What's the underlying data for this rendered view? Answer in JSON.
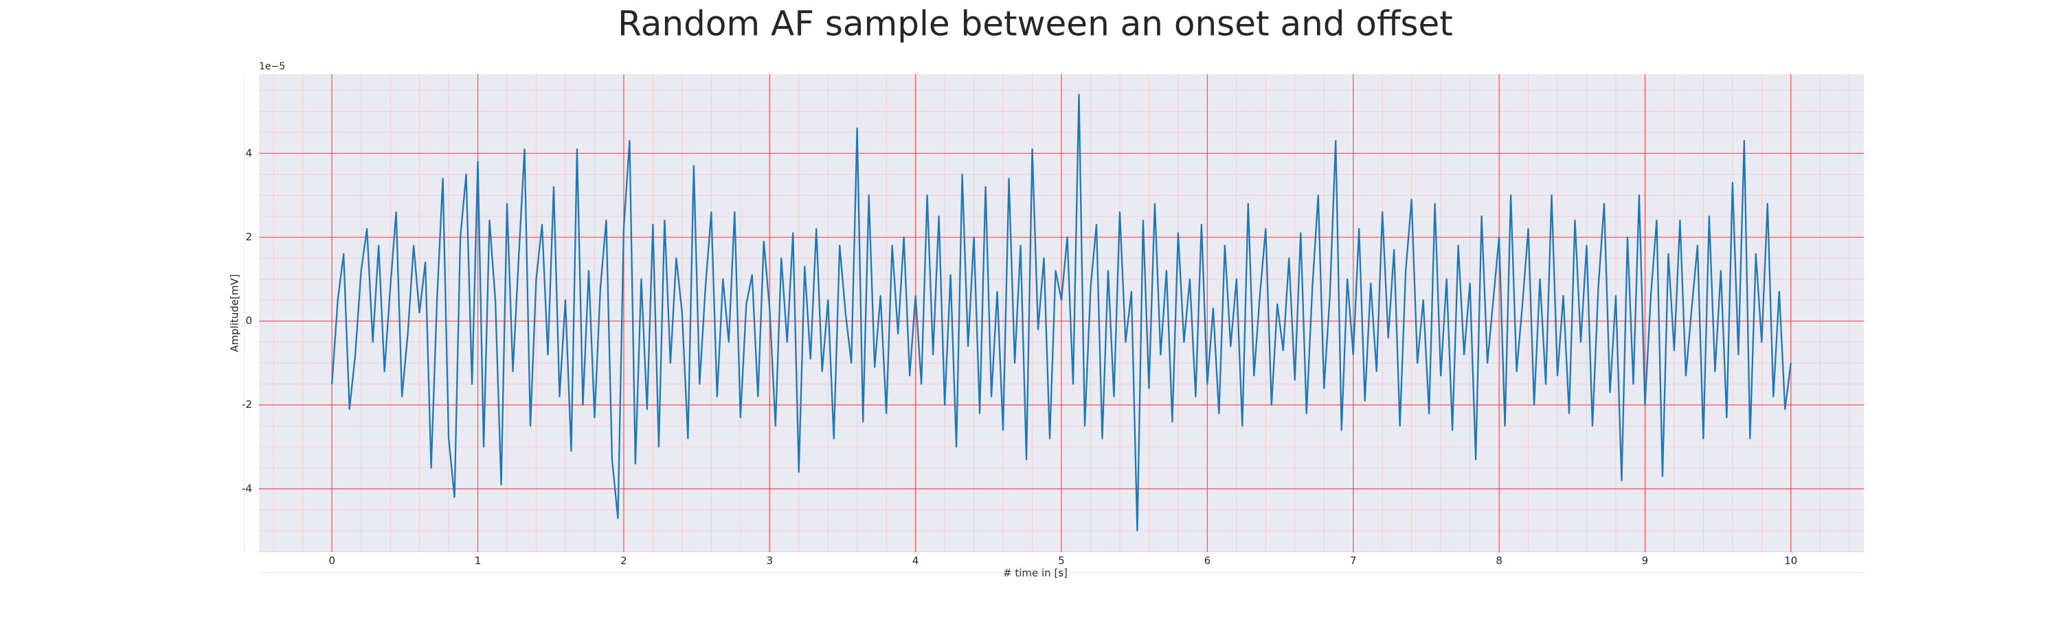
{
  "chart_data": {
    "type": "line",
    "title": "Random AF sample between an onset and offset",
    "xlabel": "# time in [s]",
    "ylabel": "Amplitude[mV]",
    "y_offset_label": "1e−5",
    "color": "#1f77b4",
    "grid": true,
    "xlim": [
      -0.5,
      10.5
    ],
    "ylim": [
      -5.51,
      5.89
    ],
    "xticks": [
      0,
      1,
      2,
      3,
      4,
      5,
      6,
      7,
      8,
      9,
      10
    ],
    "yticks": [
      -4,
      -2,
      0,
      2,
      4
    ],
    "x": [
      0,
      0.04,
      0.08,
      0.12,
      0.16,
      0.2,
      0.24,
      0.28,
      0.32,
      0.36,
      0.4,
      0.44,
      0.48,
      0.52,
      0.56,
      0.6,
      0.64,
      0.68,
      0.72,
      0.76,
      0.8,
      0.84,
      0.88,
      0.92,
      0.96,
      1,
      1.04,
      1.08,
      1.12,
      1.16,
      1.2,
      1.24,
      1.28,
      1.32,
      1.36,
      1.4,
      1.44,
      1.48,
      1.52,
      1.56,
      1.6,
      1.64,
      1.68,
      1.72,
      1.76,
      1.8,
      1.84,
      1.88,
      1.92,
      1.96,
      2,
      2.04,
      2.08,
      2.12,
      2.16,
      2.2,
      2.24,
      2.28,
      2.32,
      2.36,
      2.4,
      2.44,
      2.48,
      2.52,
      2.56,
      2.6,
      2.64,
      2.68,
      2.72,
      2.76,
      2.8,
      2.84,
      2.88,
      2.92,
      2.96,
      3,
      3.04,
      3.08,
      3.12,
      3.16,
      3.2,
      3.24,
      3.28,
      3.32,
      3.36,
      3.4,
      3.44,
      3.48,
      3.52,
      3.56,
      3.6,
      3.64,
      3.68,
      3.72,
      3.76,
      3.8,
      3.84,
      3.88,
      3.92,
      3.96,
      4,
      4.04,
      4.08,
      4.12,
      4.16,
      4.2,
      4.24,
      4.28,
      4.32,
      4.36,
      4.4,
      4.44,
      4.48,
      4.52,
      4.56,
      4.6,
      4.64,
      4.68,
      4.72,
      4.76,
      4.8,
      4.84,
      4.88,
      4.92,
      4.96,
      5,
      5.04,
      5.08,
      5.12,
      5.16,
      5.2,
      5.24,
      5.28,
      5.32,
      5.36,
      5.4,
      5.44,
      5.48,
      5.52,
      5.56,
      5.6,
      5.64,
      5.68,
      5.72,
      5.76,
      5.8,
      5.84,
      5.88,
      5.92,
      5.96,
      6,
      6.04,
      6.08,
      6.12,
      6.16,
      6.2,
      6.24,
      6.28,
      6.32,
      6.36,
      6.4,
      6.44,
      6.48,
      6.52,
      6.56,
      6.6,
      6.64,
      6.68,
      6.72,
      6.76,
      6.8,
      6.84,
      6.88,
      6.92,
      6.96,
      7,
      7.04,
      7.08,
      7.12,
      7.16,
      7.2,
      7.24,
      7.28,
      7.32,
      7.36,
      7.4,
      7.44,
      7.48,
      7.52,
      7.56,
      7.6,
      7.64,
      7.68,
      7.72,
      7.76,
      7.8,
      7.84,
      7.88,
      7.92,
      7.96,
      8,
      8.04,
      8.08,
      8.12,
      8.16,
      8.2,
      8.24,
      8.28,
      8.32,
      8.36,
      8.4,
      8.44,
      8.48,
      8.52,
      8.56,
      8.6,
      8.64,
      8.68,
      8.72,
      8.76,
      8.8,
      8.84,
      8.88,
      8.92,
      8.96,
      9,
      9.04,
      9.08,
      9.12,
      9.16,
      9.2,
      9.24,
      9.28,
      9.32,
      9.36,
      9.4,
      9.44,
      9.48,
      9.52,
      9.56,
      9.6,
      9.64,
      9.68,
      9.72,
      9.76,
      9.8,
      9.84,
      9.88,
      9.92,
      9.96,
      10
    ],
    "values": [
      -1.5,
      0.5,
      1.6,
      -2.1,
      -0.8,
      1.2,
      2.2,
      -0.5,
      1.8,
      -1.2,
      0.8,
      2.6,
      -1.8,
      -0.3,
      1.8,
      0.2,
      1.4,
      -3.5,
      0.5,
      3.4,
      -2.8,
      -4.2,
      2.0,
      3.5,
      -1.5,
      3.8,
      -3.0,
      2.4,
      0.5,
      -3.9,
      2.8,
      -1.2,
      1.5,
      4.1,
      -2.5,
      1.0,
      2.3,
      -0.8,
      3.2,
      -1.8,
      0.5,
      -3.1,
      4.1,
      -2.0,
      1.2,
      -2.3,
      0.8,
      2.4,
      -3.3,
      -4.7,
      2.2,
      4.3,
      -3.4,
      1.0,
      -2.1,
      2.3,
      -3.0,
      2.4,
      -1.0,
      1.5,
      0.2,
      -2.8,
      3.7,
      -1.5,
      0.8,
      2.6,
      -1.8,
      1.0,
      -0.5,
      2.6,
      -2.3,
      0.4,
      1.1,
      -1.8,
      1.9,
      0.3,
      -2.5,
      1.5,
      -0.5,
      2.1,
      -3.6,
      1.3,
      -0.9,
      2.2,
      -1.2,
      0.5,
      -2.8,
      1.8,
      0.2,
      -1.0,
      4.6,
      -2.4,
      3.0,
      -1.1,
      0.6,
      -2.2,
      1.8,
      -0.3,
      2.0,
      -1.3,
      0.6,
      -1.5,
      3.0,
      -0.8,
      2.5,
      -2.0,
      1.1,
      -3.0,
      3.5,
      -0.6,
      2.0,
      -2.2,
      3.2,
      -1.8,
      0.7,
      -2.6,
      3.4,
      -1.0,
      1.8,
      -3.3,
      4.1,
      -0.2,
      1.5,
      -2.8,
      1.2,
      0.5,
      2.0,
      -1.5,
      5.4,
      -2.5,
      0.8,
      2.3,
      -2.8,
      1.2,
      -1.8,
      2.6,
      -0.5,
      0.7,
      -5.0,
      2.4,
      -1.6,
      2.8,
      -0.8,
      1.2,
      -2.4,
      2.1,
      -0.5,
      1.0,
      -1.8,
      2.3,
      -1.5,
      0.3,
      -2.2,
      1.8,
      -0.6,
      1.0,
      -2.5,
      2.8,
      -1.3,
      0.6,
      2.2,
      -2.0,
      0.4,
      -0.7,
      1.5,
      -1.4,
      2.1,
      -2.2,
      0.8,
      3.0,
      -1.6,
      0.6,
      4.3,
      -2.6,
      1.0,
      -0.8,
      2.2,
      -1.9,
      0.9,
      -1.2,
      2.6,
      -0.4,
      1.7,
      -2.5,
      1.2,
      2.9,
      -1.0,
      0.5,
      -2.2,
      2.8,
      -1.3,
      1.0,
      -2.6,
      1.8,
      -0.8,
      0.9,
      -3.3,
      2.5,
      -1.0,
      0.5,
      2.0,
      -2.5,
      3.0,
      -1.2,
      0.4,
      2.2,
      -2.0,
      1.0,
      -1.5,
      3.0,
      -1.3,
      0.6,
      -2.2,
      2.4,
      -0.5,
      1.8,
      -2.5,
      0.8,
      2.8,
      -1.7,
      0.6,
      -3.8,
      2.0,
      -1.5,
      3.0,
      -2.0,
      0.6,
      2.4,
      -3.7,
      1.6,
      -0.7,
      2.4,
      -1.3,
      0.3,
      1.8,
      -2.8,
      2.5,
      -1.2,
      1.2,
      -2.3,
      3.3,
      -0.8,
      4.3,
      -2.8,
      1.6,
      -0.5,
      2.8,
      -1.8,
      0.7,
      -2.1,
      -1.0
    ]
  }
}
